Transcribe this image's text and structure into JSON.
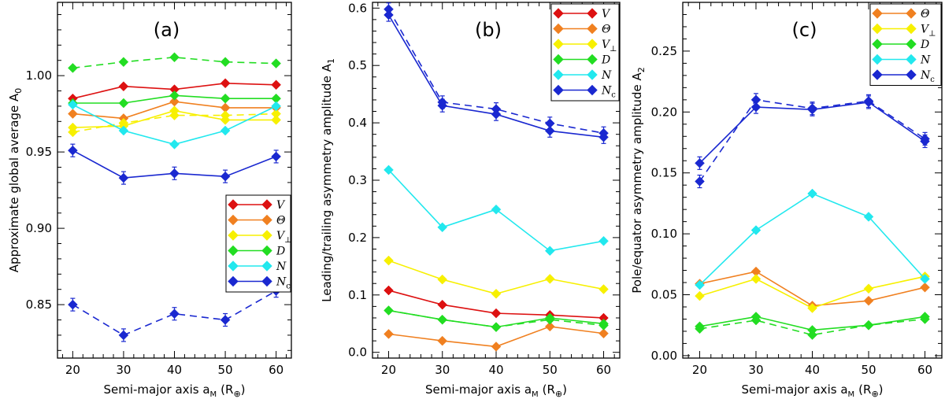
{
  "figure": {
    "x_axis_label": "Semi-major axis a",
    "x_axis_subscript": "M",
    "x_axis_unit": "(R",
    "x_axis_unit_symbol": "⊕",
    "x_axis_unit_close": ")"
  },
  "chart_data": [
    {
      "type": "line",
      "panel_label": "(a)",
      "ylabel": "Approximate global average A",
      "ylabel_subscript": "0",
      "x": [
        20,
        30,
        40,
        50,
        60
      ],
      "xlim": [
        17,
        63
      ],
      "ylim": [
        0.815,
        1.048
      ],
      "y_ticks": [
        0.85,
        0.9,
        0.95,
        1.0
      ],
      "y_tick_labels": [
        "0.85",
        "0.90",
        "0.95",
        "1.00"
      ],
      "legend_position": "center-right",
      "legend": [
        {
          "symbol": "V",
          "sub": "",
          "color": "#dd1111"
        },
        {
          "symbol": "Θ",
          "sub": "",
          "color": "#f08020"
        },
        {
          "symbol": "V",
          "sub": "⊥",
          "color": "#f7f000"
        },
        {
          "symbol": "D",
          "sub": "",
          "color": "#22dd22"
        },
        {
          "symbol": "N",
          "sub": "",
          "color": "#22e8ee"
        },
        {
          "symbol": "N",
          "sub": "c",
          "color": "#1a28d0"
        }
      ],
      "series": [
        {
          "name": "V",
          "color": "#dd1111",
          "style": "solid",
          "values": [
            0.985,
            0.993,
            0.991,
            0.995,
            0.994
          ]
        },
        {
          "name": "Theta",
          "color": "#f08020",
          "style": "solid",
          "values": [
            0.975,
            0.972,
            0.983,
            0.979,
            0.979
          ]
        },
        {
          "name": "V_perp",
          "color": "#f7f000",
          "style": "solid",
          "values": [
            0.966,
            0.967,
            0.977,
            0.971,
            0.971
          ]
        },
        {
          "name": "V_perp dashed",
          "color": "#f7f000",
          "style": "dashed",
          "values": [
            0.963,
            0.969,
            0.974,
            0.974,
            0.975
          ]
        },
        {
          "name": "D",
          "color": "#22dd22",
          "style": "solid",
          "values": [
            0.982,
            0.982,
            0.987,
            0.985,
            0.985
          ]
        },
        {
          "name": "D dashed",
          "color": "#22dd22",
          "style": "dashed",
          "values": [
            1.005,
            1.009,
            1.012,
            1.009,
            1.008
          ]
        },
        {
          "name": "N",
          "color": "#22e8ee",
          "style": "solid",
          "values": [
            0.981,
            0.964,
            0.955,
            0.964,
            0.98
          ]
        },
        {
          "name": "Nc",
          "color": "#1a28d0",
          "style": "solid",
          "values": [
            0.951,
            0.933,
            0.936,
            0.934,
            0.947
          ],
          "errorbars": true
        },
        {
          "name": "Nc dashed",
          "color": "#1a28d0",
          "style": "dashed",
          "values": [
            0.85,
            0.83,
            0.844,
            0.84,
            0.859
          ],
          "errorbars": true
        }
      ]
    },
    {
      "type": "line",
      "panel_label": "(b)",
      "ylabel": "Leading/trailing asymmetry amplitude A",
      "ylabel_subscript": "1",
      "x": [
        20,
        30,
        40,
        50,
        60
      ],
      "xlim": [
        17,
        63
      ],
      "ylim": [
        -0.01,
        0.61
      ],
      "y_ticks": [
        0.0,
        0.1,
        0.2,
        0.3,
        0.4,
        0.5,
        0.6
      ],
      "y_tick_labels": [
        "0.0",
        "0.1",
        "0.2",
        "0.3",
        "0.4",
        "0.5",
        "0.6"
      ],
      "legend_position": "top-right",
      "legend": [
        {
          "symbol": "V",
          "sub": "",
          "color": "#dd1111"
        },
        {
          "symbol": "Θ",
          "sub": "",
          "color": "#f08020"
        },
        {
          "symbol": "V",
          "sub": "⊥",
          "color": "#f7f000"
        },
        {
          "symbol": "D",
          "sub": "",
          "color": "#22dd22"
        },
        {
          "symbol": "N",
          "sub": "",
          "color": "#22e8ee"
        },
        {
          "symbol": "N",
          "sub": "c",
          "color": "#1a28d0"
        }
      ],
      "series": [
        {
          "name": "V",
          "color": "#dd1111",
          "style": "solid",
          "values": [
            0.108,
            0.083,
            0.068,
            0.065,
            0.06
          ]
        },
        {
          "name": "Theta",
          "color": "#f08020",
          "style": "solid",
          "values": [
            0.032,
            0.02,
            0.01,
            0.045,
            0.033
          ]
        },
        {
          "name": "V_perp",
          "color": "#f7f000",
          "style": "solid",
          "values": [
            0.16,
            0.127,
            0.102,
            0.128,
            0.11
          ]
        },
        {
          "name": "D",
          "color": "#22dd22",
          "style": "solid",
          "values": [
            0.073,
            0.057,
            0.044,
            0.06,
            0.05
          ]
        },
        {
          "name": "D dashed",
          "color": "#22dd22",
          "style": "dashed",
          "values": [
            0.073,
            0.057,
            0.044,
            0.057,
            0.047
          ]
        },
        {
          "name": "N",
          "color": "#22e8ee",
          "style": "solid",
          "values": [
            0.318,
            0.218,
            0.249,
            0.177,
            0.194
          ]
        },
        {
          "name": "Nc",
          "color": "#1a28d0",
          "style": "solid",
          "values": [
            0.588,
            0.43,
            0.415,
            0.386,
            0.375
          ],
          "errorbars": true
        },
        {
          "name": "Nc dashed",
          "color": "#1a28d0",
          "style": "dashed",
          "values": [
            0.598,
            0.436,
            0.424,
            0.399,
            0.382
          ],
          "errorbars": true
        }
      ]
    },
    {
      "type": "line",
      "panel_label": "(c)",
      "ylabel": "Pole/equator asymmetry amplitude A",
      "ylabel_subscript": "2",
      "x": [
        20,
        30,
        40,
        50,
        60
      ],
      "xlim": [
        17,
        63
      ],
      "ylim": [
        -0.002,
        0.29
      ],
      "y_ticks": [
        0.0,
        0.05,
        0.1,
        0.15,
        0.2,
        0.25
      ],
      "y_tick_labels": [
        "0.00",
        "0.05",
        "0.10",
        "0.15",
        "0.20",
        "0.25"
      ],
      "legend_position": "top-right",
      "legend": [
        {
          "symbol": "Θ",
          "sub": "",
          "color": "#f08020"
        },
        {
          "symbol": "V",
          "sub": "⊥",
          "color": "#f7f000"
        },
        {
          "symbol": "D",
          "sub": "",
          "color": "#22dd22"
        },
        {
          "symbol": "N",
          "sub": "",
          "color": "#22e8ee"
        },
        {
          "symbol": "N",
          "sub": "c",
          "color": "#1a28d0"
        }
      ],
      "series": [
        {
          "name": "Theta",
          "color": "#f08020",
          "style": "solid",
          "values": [
            0.059,
            0.069,
            0.041,
            0.045,
            0.056
          ]
        },
        {
          "name": "V_perp",
          "color": "#f7f000",
          "style": "solid",
          "values": [
            0.049,
            0.063,
            0.039,
            0.055,
            0.065
          ]
        },
        {
          "name": "D",
          "color": "#22dd22",
          "style": "solid",
          "values": [
            0.024,
            0.032,
            0.021,
            0.025,
            0.032
          ]
        },
        {
          "name": "D dashed",
          "color": "#22dd22",
          "style": "dashed",
          "values": [
            0.022,
            0.029,
            0.017,
            0.025,
            0.03
          ]
        },
        {
          "name": "N",
          "color": "#22e8ee",
          "style": "solid",
          "values": [
            0.058,
            0.103,
            0.133,
            0.114,
            0.063
          ]
        },
        {
          "name": "Nc",
          "color": "#1a28d0",
          "style": "solid",
          "values": [
            0.158,
            0.204,
            0.202,
            0.208,
            0.176
          ],
          "errorbars": true
        },
        {
          "name": "Nc dashed",
          "color": "#1a28d0",
          "style": "dashed",
          "values": [
            0.143,
            0.21,
            0.203,
            0.209,
            0.178
          ],
          "errorbars": true
        }
      ]
    }
  ]
}
